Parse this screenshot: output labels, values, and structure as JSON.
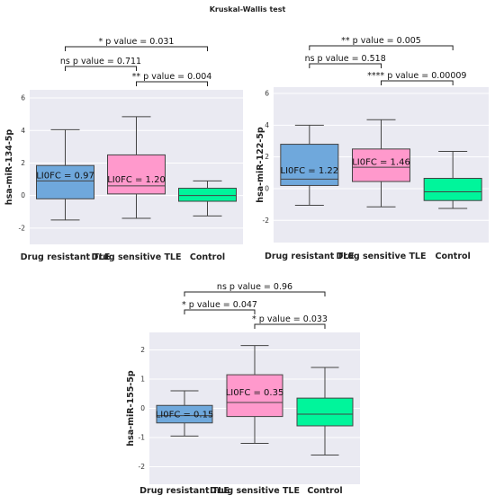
{
  "figure_title": "Kruskal-Wallis test",
  "chart_data": [
    {
      "type": "box",
      "ylabel": "hsa-miR-134-5p",
      "ylim": [
        -3,
        6.5
      ],
      "yticks": [
        -2,
        0,
        2,
        4,
        6
      ],
      "ytick_labels": [
        "-2",
        "0",
        "2",
        "4",
        "6"
      ],
      "grid": true,
      "categories": [
        "Drug resistant TLE",
        "Drug sensitive TLE",
        "Control"
      ],
      "colors": [
        "#6fa8dc",
        "#ff99cc",
        "#00f59b"
      ],
      "boxes": [
        {
          "whislo": -1.5,
          "q1": -0.2,
          "med": 0.9,
          "q3": 1.85,
          "whishi": 4.05
        },
        {
          "whislo": -1.4,
          "q1": 0.1,
          "med": 0.6,
          "q3": 2.5,
          "whishi": 4.85
        },
        {
          "whislo": -1.25,
          "q1": -0.35,
          "med": 0.0,
          "q3": 0.45,
          "whishi": 0.9
        }
      ],
      "box_labels": [
        {
          "text": "LI0FC = 0.97",
          "box": 0,
          "y": 1.25
        },
        {
          "text": "LI0FC = 1.20",
          "box": 1,
          "y": 1.0
        }
      ],
      "annotations": [
        {
          "text": "ns p value = 0.711",
          "from": 0,
          "to": 1,
          "level": 1
        },
        {
          "text": "** p value = 0.004",
          "from": 1,
          "to": 2,
          "level": 0
        },
        {
          "text": "* p value = 0.031",
          "from": 0,
          "to": 2,
          "level": 2
        }
      ]
    },
    {
      "type": "box",
      "ylabel": "hsa-miR-122-5p",
      "ylim": [
        -3.4,
        6.4
      ],
      "yticks": [
        -2,
        0,
        2,
        4,
        6
      ],
      "ytick_labels": [
        "-2",
        "0",
        "2",
        "4",
        "6"
      ],
      "grid": true,
      "categories": [
        "Drug resistant TLE",
        "Drug sensitive TLE",
        "Control"
      ],
      "colors": [
        "#6fa8dc",
        "#ff99cc",
        "#00f59b"
      ],
      "boxes": [
        {
          "whislo": -1.05,
          "q1": 0.2,
          "med": 0.6,
          "q3": 2.8,
          "whishi": 4.0
        },
        {
          "whislo": -1.15,
          "q1": 0.45,
          "med": 1.35,
          "q3": 2.5,
          "whishi": 4.35
        },
        {
          "whislo": -1.25,
          "q1": -0.75,
          "med": -0.2,
          "q3": 0.65,
          "whishi": 2.35
        }
      ],
      "box_labels": [
        {
          "text": "LI0FC = 1.22",
          "box": 0,
          "y": 1.15
        },
        {
          "text": "LI0FC = 1.46",
          "box": 1,
          "y": 1.7
        }
      ],
      "annotations": [
        {
          "text": "ns p value = 0.518",
          "from": 0,
          "to": 1,
          "level": 1
        },
        {
          "text": "**** p value = 0.00009",
          "from": 1,
          "to": 2,
          "level": 0
        },
        {
          "text": "** p value = 0.005",
          "from": 0,
          "to": 2,
          "level": 2
        }
      ]
    },
    {
      "type": "box",
      "ylabel": "hsa-miR-155-5p",
      "ylim": [
        -2.6,
        2.6
      ],
      "yticks": [
        -2,
        -1,
        0,
        1,
        2
      ],
      "ytick_labels": [
        "-2",
        "-1",
        "0",
        "1",
        "2"
      ],
      "grid": true,
      "categories": [
        "Drug resistant TLE",
        "Drug sensitive TLE",
        "Control"
      ],
      "colors": [
        "#6fa8dc",
        "#ff99cc",
        "#00f59b"
      ],
      "boxes": [
        {
          "whislo": -0.95,
          "q1": -0.5,
          "med": -0.25,
          "q3": 0.1,
          "whishi": 0.6
        },
        {
          "whislo": -1.2,
          "q1": -0.28,
          "med": 0.2,
          "q3": 1.15,
          "whishi": 2.15
        },
        {
          "whislo": -1.6,
          "q1": -0.6,
          "med": -0.2,
          "q3": 0.35,
          "whishi": 1.4
        }
      ],
      "box_labels": [
        {
          "text": "LI0FC = 0.15",
          "box": 0,
          "y": -0.2
        },
        {
          "text": "LI0FC = 0.35",
          "box": 1,
          "y": 0.55
        }
      ],
      "annotations": [
        {
          "text": "* p value = 0.047",
          "from": 0,
          "to": 1,
          "level": 1
        },
        {
          "text": "* p value = 0.033",
          "from": 1,
          "to": 2,
          "level": 0
        },
        {
          "text": "ns p value = 0.96",
          "from": 0,
          "to": 2,
          "level": 2
        }
      ]
    }
  ]
}
